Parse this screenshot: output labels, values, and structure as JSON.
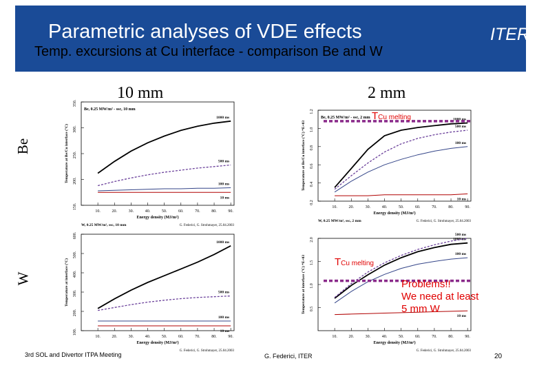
{
  "header": {
    "title": "Parametric analyses of VDE effects",
    "org": "ITER",
    "subtitle": "Temp. excursions at Cu interface  - comparison Be and W"
  },
  "column_labels": {
    "left": "10 mm",
    "right": "2 mm"
  },
  "row_labels": {
    "top": "Be",
    "bottom": "W"
  },
  "annotations": {
    "cu_melting_T": "T",
    "cu_melting_sub": "Cu melting",
    "problems": [
      "Problems!!",
      "We need at least",
      "5 mm W"
    ]
  },
  "footer": {
    "left": "3rd SOL and Divertor ITPA Meeting",
    "center": "G. Federici, ITER",
    "page": "20"
  },
  "colors": {
    "header_bg": "#1a4b97",
    "header_text": "#ffffff",
    "highlight": "#e00000",
    "cu_line": "#8a2a8a"
  },
  "chart_data": [
    {
      "id": "be10",
      "type": "line",
      "title": "Be, 0.25 MW/m² - ssc, 10 mm",
      "xlabel": "Energy density (MJ/m²)",
      "ylabel": "Temperature at Be/Cu interface (°C)",
      "x": [
        10,
        20,
        30,
        40,
        50,
        60,
        70,
        80,
        90
      ],
      "xlim": [
        0,
        92
      ],
      "ylim": [
        150,
        350
      ],
      "yticks": [
        150,
        200,
        250,
        300,
        350
      ],
      "yticklabels": [
        "150.",
        "200.",
        "250.",
        "300.",
        "350."
      ],
      "xticklabels": [
        "10.",
        "20.",
        "30.",
        "40.",
        "50.",
        "60.",
        "70.",
        "80.",
        "90."
      ],
      "series": [
        {
          "name": "1000 ms",
          "values": [
            212,
            235,
            255,
            271,
            284,
            295,
            303,
            309,
            313
          ]
        },
        {
          "name": "500 ms",
          "values": [
            188,
            196,
            203,
            209,
            214,
            218,
            222,
            225,
            228
          ]
        },
        {
          "name": "100 ms",
          "values": [
            178,
            179,
            180,
            181,
            182,
            182,
            183,
            183,
            184
          ]
        },
        {
          "name": "10 ms",
          "values": [
            175,
            175,
            175,
            175,
            175,
            175,
            175,
            175,
            175
          ]
        }
      ],
      "credit": "W, 0.25 MW/m², ssc, 10 mm",
      "source": "G. Federici, G. Strohmayer, 25.04.2003"
    },
    {
      "id": "be2",
      "type": "line",
      "title": "Be, 0.25 MW/m² - ssc, 2 mm",
      "xlabel": "Energy density (MJ/m²)",
      "ylabel": "Temperature at Be/Cu interface (°C) *E+03",
      "x": [
        10,
        20,
        30,
        40,
        50,
        60,
        70,
        80,
        90
      ],
      "xlim": [
        0,
        92
      ],
      "ylim": [
        0.2,
        1.2
      ],
      "yticks": [
        0.2,
        0.4,
        0.6,
        0.8,
        1.0,
        1.2
      ],
      "yticklabels": [
        "0.2",
        "0.4",
        "0.6",
        "0.8",
        "1.0",
        "1.2"
      ],
      "xticklabels": [
        "10.",
        "20.",
        "30.",
        "40.",
        "50.",
        "60.",
        "70.",
        "80.",
        "90."
      ],
      "series": [
        {
          "name": "1000 ms",
          "values": [
            0.35,
            0.56,
            0.77,
            0.92,
            0.98,
            1.01,
            1.03,
            1.05,
            1.06
          ]
        },
        {
          "name": "500 ms",
          "values": [
            0.33,
            0.48,
            0.62,
            0.74,
            0.83,
            0.89,
            0.93,
            0.96,
            0.98
          ]
        },
        {
          "name": "100 ms",
          "values": [
            0.3,
            0.42,
            0.52,
            0.6,
            0.66,
            0.71,
            0.75,
            0.78,
            0.8
          ]
        },
        {
          "name": "10 ms",
          "values": [
            0.26,
            0.26,
            0.26,
            0.27,
            0.27,
            0.27,
            0.27,
            0.27,
            0.28
          ]
        }
      ],
      "cu_melt_level": 1.08,
      "credit": "W, 0.25 MW/m², ssc, 2 mm",
      "source": "G. Federici, G. Strohmayer, 25.04.2003"
    },
    {
      "id": "w10",
      "type": "line",
      "title": "",
      "xlabel": "Energy density (MJ/m²)",
      "ylabel": "Temperature at interface (°C)",
      "x": [
        10,
        20,
        30,
        40,
        50,
        60,
        70,
        80,
        90
      ],
      "xlim": [
        0,
        92
      ],
      "ylim": [
        100,
        600
      ],
      "yticks": [
        100,
        200,
        300,
        400,
        500,
        600
      ],
      "yticklabels": [
        "100.",
        "200.",
        "300.",
        "400.",
        "500.",
        "600."
      ],
      "xticklabels": [
        "10.",
        "20.",
        "30.",
        "40.",
        "50.",
        "60.",
        "70.",
        "80.",
        "90."
      ],
      "series": [
        {
          "name": "1000 ms",
          "values": [
            215,
            265,
            310,
            350,
            385,
            420,
            455,
            495,
            540
          ]
        },
        {
          "name": "500 ms",
          "values": [
            205,
            220,
            235,
            248,
            258,
            266,
            272,
            276,
            280
          ]
        },
        {
          "name": "100 ms",
          "values": [
            150,
            150,
            150,
            150,
            150,
            150,
            150,
            150,
            150
          ]
        },
        {
          "name": "10 ms",
          "values": [
            125,
            125,
            125,
            125,
            125,
            125,
            125,
            125,
            125
          ]
        }
      ],
      "source": "G. Federici, G. Strohmayer, 25.04.2003"
    },
    {
      "id": "w2",
      "type": "line",
      "title": "",
      "xlabel": "Energy density (MJ/m²)",
      "ylabel": "Temperature at interface (°C) *E+03",
      "x": [
        10,
        20,
        30,
        40,
        50,
        60,
        70,
        80,
        90
      ],
      "xlim": [
        0,
        92
      ],
      "ylim": [
        0,
        2.0
      ],
      "yticks": [
        0.5,
        1.0,
        1.5,
        2.0
      ],
      "yticklabels": [
        "0.5",
        "1.0",
        "1.5",
        "2.0"
      ],
      "xticklabels": [
        "10.",
        "20.",
        "30.",
        "40.",
        "50.",
        "60.",
        "70.",
        "80.",
        "90."
      ],
      "series": [
        {
          "name": "1000 ms",
          "values": [
            0.7,
            0.98,
            1.21,
            1.42,
            1.58,
            1.71,
            1.8,
            1.87,
            1.9
          ]
        },
        {
          "name": "500 ms",
          "values": [
            0.72,
            1.02,
            1.27,
            1.47,
            1.63,
            1.76,
            1.86,
            1.94,
            2.0
          ]
        },
        {
          "name": "100 ms",
          "values": [
            0.6,
            0.85,
            1.06,
            1.22,
            1.35,
            1.44,
            1.5,
            1.55,
            1.58
          ]
        },
        {
          "name": "10 ms",
          "values": [
            0.35,
            0.36,
            0.37,
            0.38,
            0.39,
            0.4,
            0.41,
            0.42,
            0.43
          ]
        }
      ],
      "cu_melt_level": 1.08,
      "source": "G. Federici, G. Strohmayer, 25.04.2003"
    }
  ]
}
